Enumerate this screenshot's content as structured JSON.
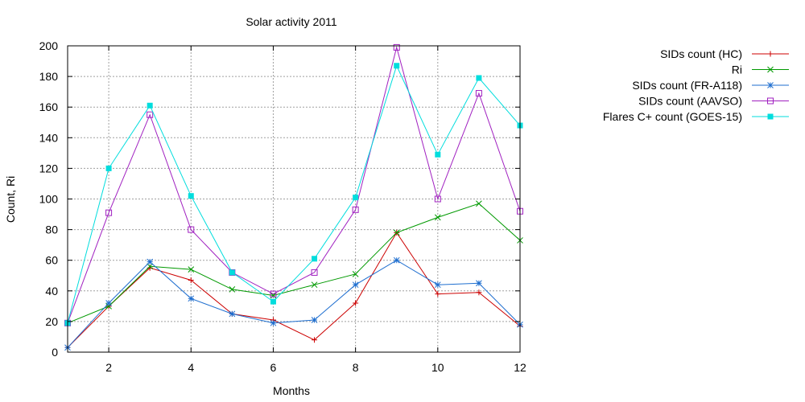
{
  "chart_data": {
    "type": "line",
    "title": "Solar activity 2011",
    "xlabel": "Months",
    "ylabel": "Count, Ri",
    "xlim": [
      1,
      12
    ],
    "ylim": [
      0,
      200
    ],
    "xticks": [
      2,
      4,
      6,
      8,
      10,
      12
    ],
    "yticks": [
      0,
      20,
      40,
      60,
      80,
      100,
      120,
      140,
      160,
      180,
      200
    ],
    "grid": true,
    "legend_position": "outside-right-top",
    "x": [
      1,
      2,
      3,
      4,
      5,
      6,
      7,
      8,
      9,
      10,
      11,
      12
    ],
    "series": [
      {
        "name": "SIDs count (HC)",
        "color": "#cc0000",
        "marker": "plus",
        "values": [
          3,
          30,
          55,
          47,
          25,
          21,
          8,
          32,
          78,
          38,
          39,
          17
        ]
      },
      {
        "name": "Ri",
        "color": "#009900",
        "marker": "cross",
        "values": [
          19,
          30,
          56,
          54,
          41,
          37,
          44,
          51,
          78,
          88,
          97,
          73
        ]
      },
      {
        "name": "SIDs count (FR-A118)",
        "color": "#1e6ecf",
        "marker": "star",
        "values": [
          3,
          32,
          59,
          35,
          25,
          19,
          21,
          44,
          60,
          44,
          45,
          18
        ]
      },
      {
        "name": "SIDs count (AAVSO)",
        "color": "#a020c0",
        "marker": "square-open",
        "values": [
          19,
          91,
          155,
          80,
          52,
          38,
          52,
          93,
          199,
          100,
          169,
          92
        ]
      },
      {
        "name": "Flares C+ count (GOES-15)",
        "color": "#00dddd",
        "marker": "square-filled",
        "values": [
          19,
          120,
          161,
          102,
          52,
          33,
          61,
          101,
          187,
          129,
          179,
          148
        ]
      }
    ]
  }
}
